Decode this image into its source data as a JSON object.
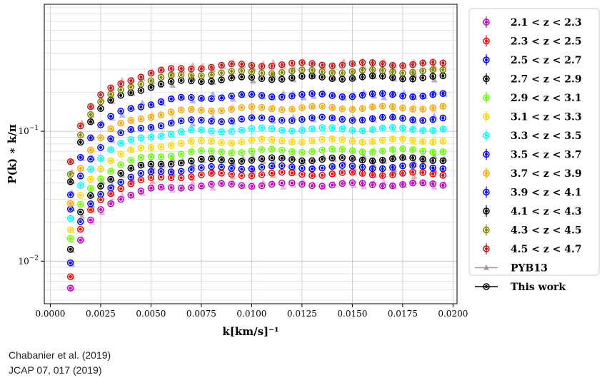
{
  "chart_data": {
    "type": "scatter",
    "xlabel": "k[km/s]⁻¹",
    "ylabel": "P(k) ∗ k/π",
    "xscale": "linear",
    "yscale": "log",
    "xlim": [
      -0.0003,
      0.0202
    ],
    "ylim": [
      0.0047,
      0.95
    ],
    "x_ticks": [
      {
        "v": 0.0,
        "label": "0.0000"
      },
      {
        "v": 0.0025,
        "label": "0.0025"
      },
      {
        "v": 0.005,
        "label": "0.0050"
      },
      {
        "v": 0.0075,
        "label": "0.0075"
      },
      {
        "v": 0.01,
        "label": "0.0100"
      },
      {
        "v": 0.0125,
        "label": "0.0125"
      },
      {
        "v": 0.015,
        "label": "0.0150"
      },
      {
        "v": 0.0175,
        "label": "0.0175"
      },
      {
        "v": 0.02,
        "label": "0.0200"
      }
    ],
    "y_ticks": [
      {
        "v": 0.01,
        "base": "10",
        "exp": "−2"
      },
      {
        "v": 0.1,
        "base": "10",
        "exp": "−1"
      }
    ],
    "grid": true,
    "legend_position": "outside-right",
    "x": [
      0.001,
      0.0015,
      0.002,
      0.0025,
      0.003,
      0.0035,
      0.004,
      0.0045,
      0.005,
      0.0055,
      0.006,
      0.0065,
      0.007,
      0.0075,
      0.008,
      0.0085,
      0.009,
      0.0095,
      0.01,
      0.0105,
      0.011,
      0.0115,
      0.012,
      0.0125,
      0.013,
      0.0135,
      0.014,
      0.0145,
      0.015,
      0.0155,
      0.016,
      0.0165,
      0.017,
      0.0175,
      0.018,
      0.0185,
      0.019,
      0.0195
    ],
    "series": [
      {
        "name": "2.1 < z < 2.3",
        "color": "#c000c0",
        "low": 0.0062,
        "plateau": 0.039,
        "k0": 0.0018
      },
      {
        "name": "2.3 < z < 2.5",
        "color": "#ff0000",
        "low": 0.0075,
        "plateau": 0.047,
        "k0": 0.0018
      },
      {
        "name": "2.5 < z < 2.7",
        "color": "#0000ff",
        "low": 0.0095,
        "plateau": 0.053,
        "k0": 0.0019
      },
      {
        "name": "2.7 < z < 2.9",
        "color": "#000000",
        "low": 0.012,
        "plateau": 0.061,
        "k0": 0.0019
      },
      {
        "name": "2.9 < z < 3.1",
        "color": "#66ff00",
        "low": 0.0145,
        "plateau": 0.071,
        "k0": 0.002
      },
      {
        "name": "3.1 < z < 3.3",
        "color": "#ffd700",
        "low": 0.017,
        "plateau": 0.085,
        "k0": 0.002
      },
      {
        "name": "3.3 < z < 3.5",
        "color": "#00ffff",
        "low": 0.021,
        "plateau": 0.104,
        "k0": 0.0021
      },
      {
        "name": "3.5 < z < 3.7",
        "color": "#0000ff",
        "low": 0.025,
        "plateau": 0.125,
        "k0": 0.0021
      },
      {
        "name": "3.7 < z < 3.9",
        "color": "#ffa500",
        "low": 0.028,
        "plateau": 0.152,
        "k0": 0.0022
      },
      {
        "name": "3.9 < z < 4.1",
        "color": "#0000ff",
        "low": 0.033,
        "plateau": 0.19,
        "k0": 0.0022
      },
      {
        "name": "4.1 < z < 4.3",
        "color": "#000000",
        "low": 0.042,
        "plateau": 0.26,
        "k0": 0.0023
      },
      {
        "name": "4.3 < z < 4.5",
        "color": "#808000",
        "low": 0.048,
        "plateau": 0.29,
        "k0": 0.0023
      },
      {
        "name": "4.5 < z < 4.7",
        "color": "#c81414",
        "low": 0.06,
        "plateau": 0.33,
        "k0": 0.0024
      }
    ],
    "reference_legend": [
      {
        "label": "PYB13",
        "color": "#9a9a9a",
        "marker": "triangle"
      },
      {
        "label": "This work",
        "color": "#000000",
        "marker": "circle"
      }
    ]
  },
  "credit": {
    "line1": "Chabanier et al. (2019)",
    "line2": "JCAP 07, 017 (2019)"
  }
}
